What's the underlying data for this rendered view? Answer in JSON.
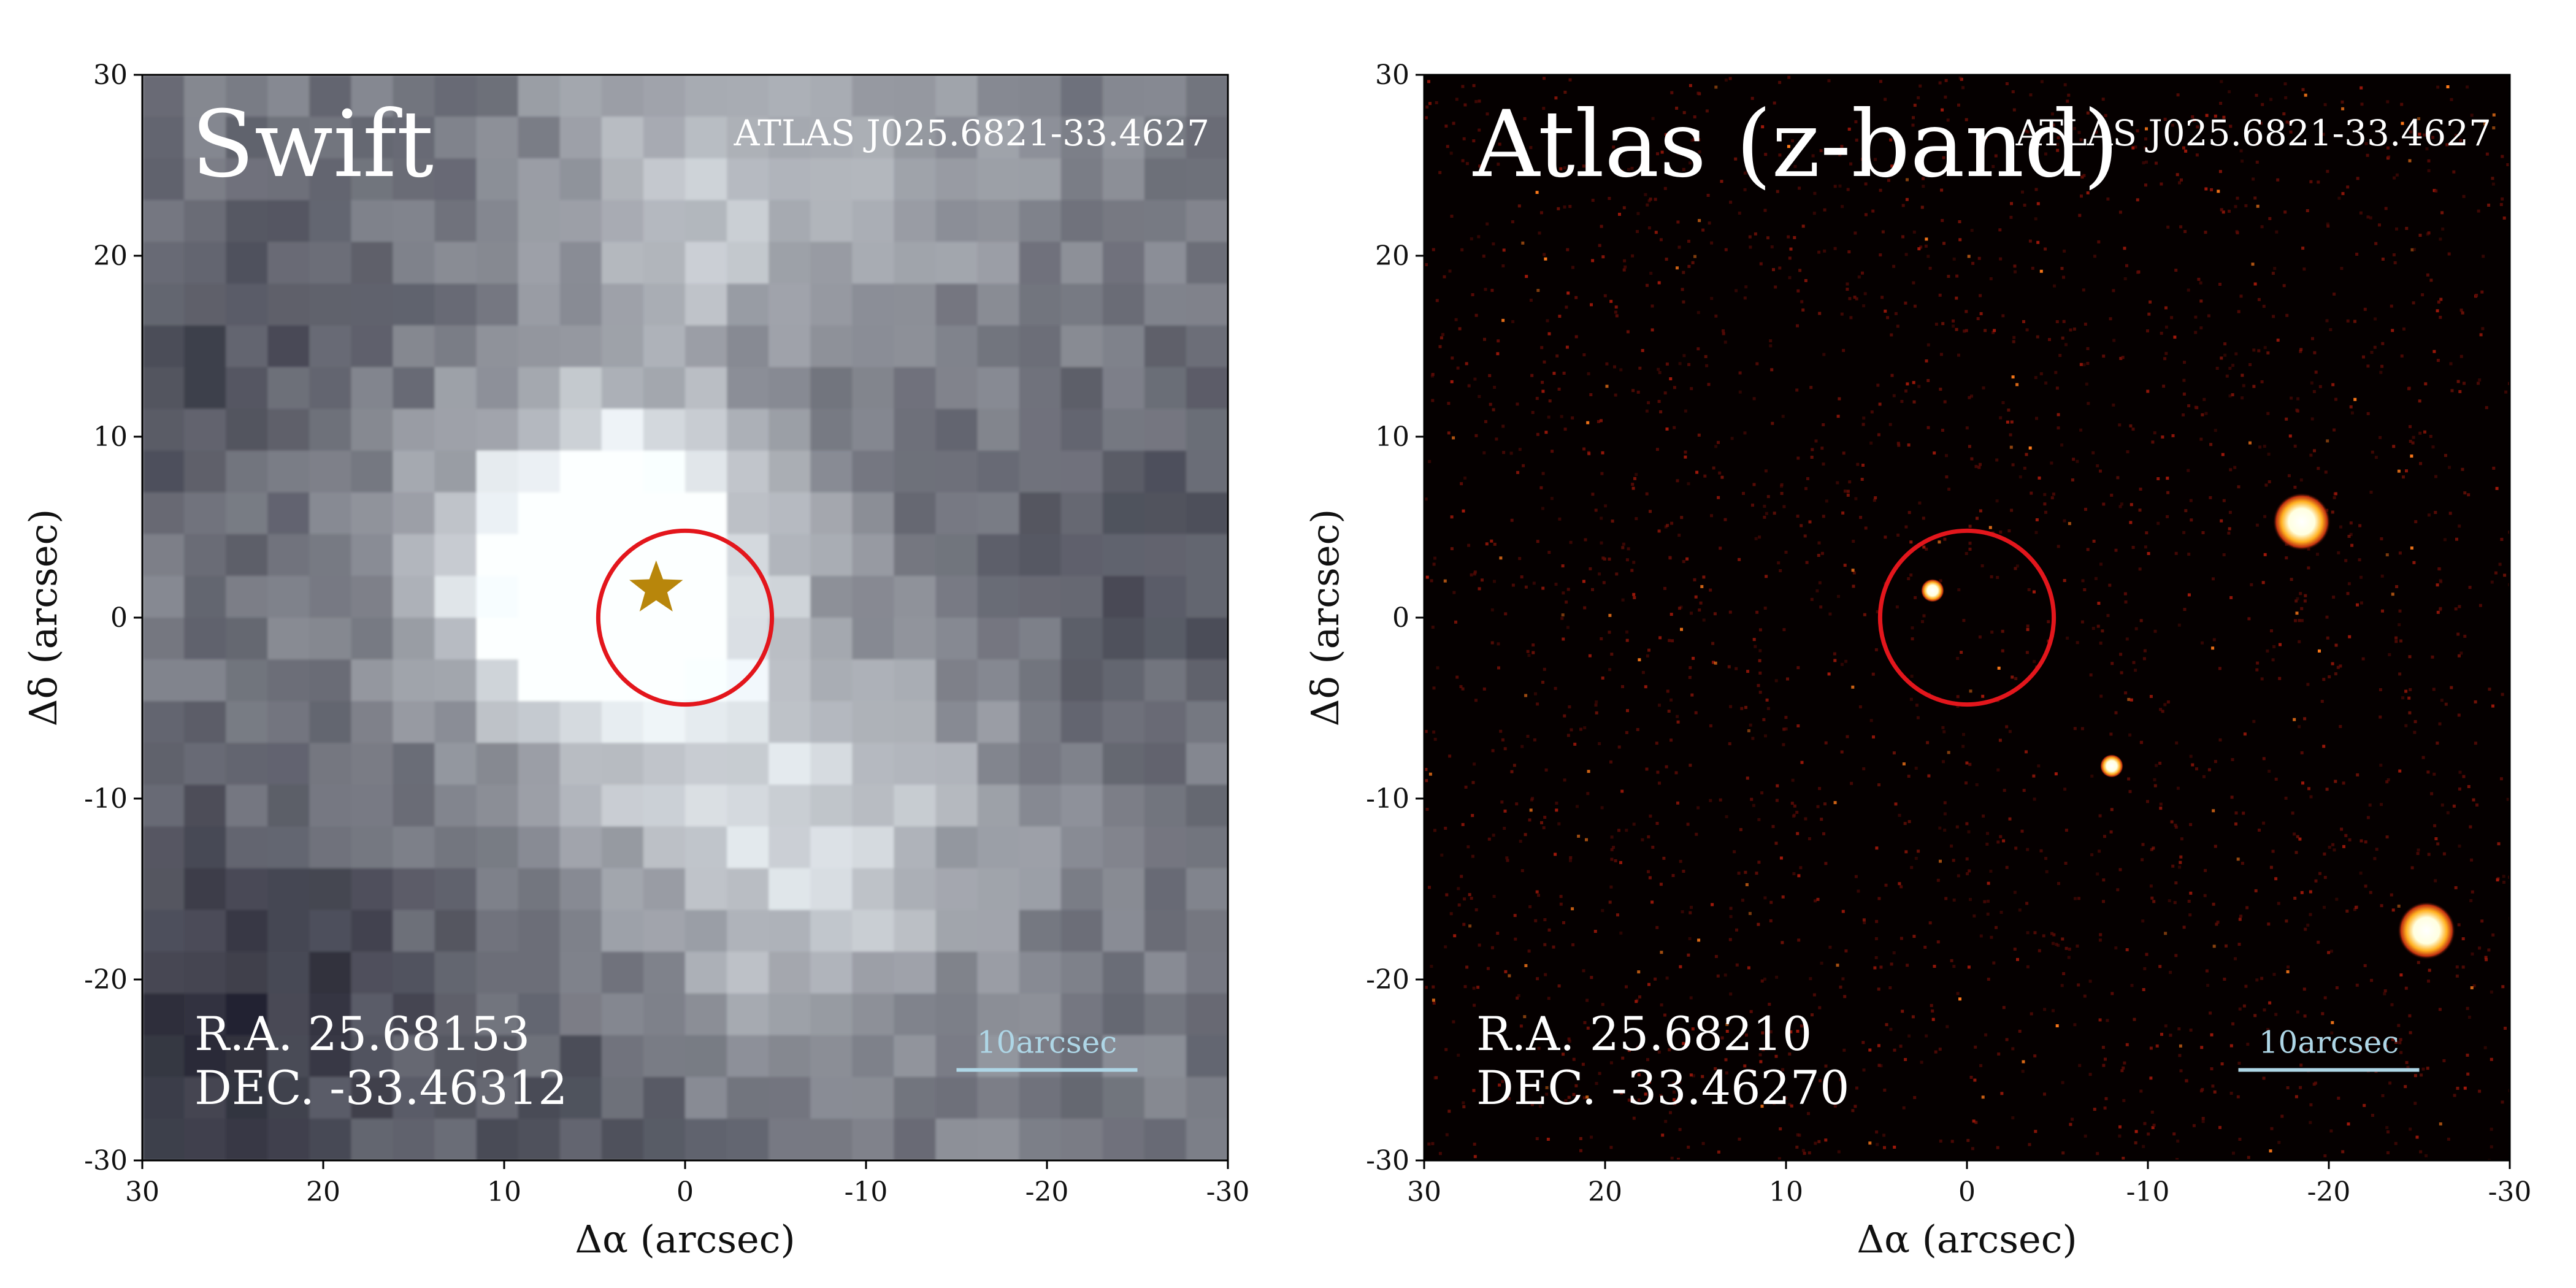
{
  "chart_data": [
    {
      "type": "heatmap",
      "title": "Swift",
      "object": "ATLAS J025.6821-33.4627",
      "ra_text": "R.A. 25.68153",
      "dec_text": "DEC. -33.46312",
      "xlabel": "Δα (arcsec)",
      "ylabel": "Δδ (arcsec)",
      "xlim": [
        30,
        -30
      ],
      "ylim": [
        -30,
        30
      ],
      "xticks": [
        30,
        20,
        10,
        0,
        -10,
        -20,
        -30
      ],
      "yticks": [
        30,
        20,
        10,
        0,
        -10,
        -20,
        -30
      ],
      "xtick_labels": [
        "30",
        "20",
        "10",
        "0",
        "-10",
        "-20",
        "-30"
      ],
      "ytick_labels": [
        "30",
        "20",
        "10",
        "0",
        "-10",
        "-20",
        "-30"
      ],
      "colormap": "bone",
      "circle": {
        "x": 0,
        "y": 0,
        "radius_arcsec": 4.8,
        "color": "#e3161c"
      },
      "star": {
        "x": 1.6,
        "y": 1.6,
        "color": "#b8860b"
      },
      "scalebar": {
        "label": "10arcsec",
        "length_arcsec": 10,
        "x_start": -15,
        "y": -25,
        "color": "#aed6e6"
      }
    },
    {
      "type": "heatmap",
      "title": "Atlas (z-band)",
      "object": "ATLAS J025.6821-33.4627",
      "ra_text": "R.A. 25.68210",
      "dec_text": "DEC. -33.46270",
      "xlabel": "Δα (arcsec)",
      "ylabel": "Δδ (arcsec)",
      "xlim": [
        30,
        -30
      ],
      "ylim": [
        -30,
        30
      ],
      "xticks": [
        30,
        20,
        10,
        0,
        -10,
        -20,
        -30
      ],
      "yticks": [
        30,
        20,
        10,
        0,
        -10,
        -20,
        -30
      ],
      "xtick_labels": [
        "30",
        "20",
        "10",
        "0",
        "-10",
        "-20",
        "-30"
      ],
      "ytick_labels": [
        "30",
        "20",
        "10",
        "0",
        "-10",
        "-20",
        "-30"
      ],
      "colormap": "afmhot",
      "circle": {
        "x": 0,
        "y": 0,
        "radius_arcsec": 4.8,
        "color": "#e3161c"
      },
      "sources": [
        {
          "x": 1.9,
          "y": 1.5,
          "size": "small"
        },
        {
          "x": -8.0,
          "y": -8.2,
          "size": "small"
        },
        {
          "x": -18.5,
          "y": 5.3,
          "size": "large"
        },
        {
          "x": -25.4,
          "y": -17.3,
          "size": "large"
        }
      ],
      "scalebar": {
        "label": "10arcsec",
        "length_arcsec": 10,
        "x_start": -15,
        "y": -25,
        "color": "#aed6e6"
      }
    }
  ]
}
